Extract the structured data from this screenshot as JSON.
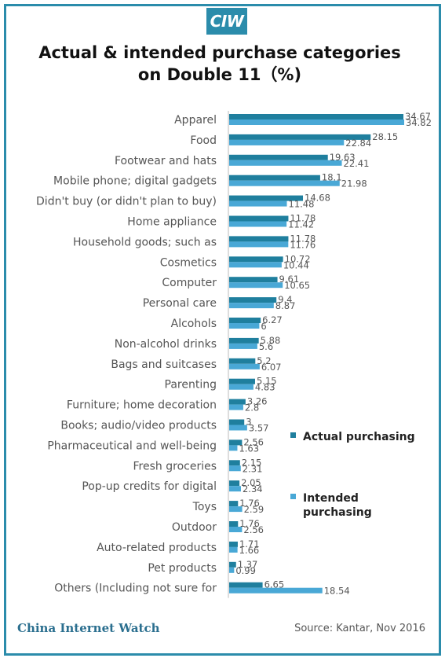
{
  "logo": "CIW",
  "title": "Actual & intended purchase categories on Double 11（%)",
  "footer": {
    "brand": "China Internet Watch",
    "source": "Source: Kantar, Nov 2016"
  },
  "colors": {
    "actual": "#1f7f9e",
    "intended": "#49a8d6",
    "frame": "#2b8cab"
  },
  "chart_data": {
    "type": "bar",
    "orientation": "horizontal",
    "title": "Actual & intended purchase categories on Double 11（%)",
    "legend_position": "right",
    "categories": [
      "Apparel",
      "Food",
      "Footwear and hats",
      "Mobile phone; digital gadgets",
      "Didn't buy (or didn't plan to buy)",
      "Home appliance",
      "Household goods; such as",
      "Cosmetics",
      "Computer",
      "Personal care",
      "Alcohols",
      "Non-alcohol drinks",
      "Bags and suitcases",
      "Parenting",
      "Furniture; home decoration",
      "Books; audio/video products",
      "Pharmaceutical and well-being",
      "Fresh groceries",
      "Pop-up credits for digital",
      "Toys",
      "Outdoor",
      "Auto-related products",
      "Pet products",
      "Others (Including not sure for"
    ],
    "series": [
      {
        "name": "Actual purchasing",
        "values": [
          34.67,
          28.15,
          19.63,
          18.1,
          14.68,
          11.78,
          11.78,
          10.72,
          9.61,
          9.4,
          6.27,
          5.88,
          5.2,
          5.15,
          3.26,
          3,
          2.56,
          2.15,
          2.05,
          1.76,
          1.76,
          1.71,
          1.37,
          6.65
        ],
        "labels": [
          "34.67",
          "28.15",
          "19.63",
          "18.1",
          "14.68",
          "11.78",
          "11.78",
          "10.72",
          "9.61",
          "9.4",
          "6.27",
          "5.88",
          "5.2",
          "5.15",
          "3.26",
          "3",
          "2.56",
          "2.15",
          "2.05",
          "1.76",
          "1.76",
          "1.71",
          "1.37",
          "6.65"
        ]
      },
      {
        "name": "Intended purchasing",
        "values": [
          34.82,
          22.84,
          22.41,
          21.98,
          11.48,
          11.42,
          11.76,
          10.44,
          10.65,
          8.87,
          6,
          5.6,
          6.07,
          4.83,
          2.8,
          3.57,
          1.63,
          2.31,
          2.34,
          2.59,
          2.56,
          1.66,
          0.99,
          18.54
        ],
        "labels": [
          "34.82",
          "22.84",
          "22.41",
          "21.98",
          "11.48",
          "11.42",
          "11.76",
          "10.44",
          "10.65",
          "8.87",
          "6",
          "5.6",
          "6.07",
          "4.83",
          "2.8",
          "3.57",
          "1.63",
          "2.31",
          "2.34",
          "2.59",
          "2.56",
          "1.66",
          "0.99",
          "18.54"
        ]
      }
    ],
    "legend": [
      {
        "name": "Actual purchasing",
        "lines": [
          "Actual purchasing"
        ]
      },
      {
        "name": "Intended purchasing",
        "lines": [
          "Intended",
          "purchasing"
        ]
      }
    ]
  }
}
